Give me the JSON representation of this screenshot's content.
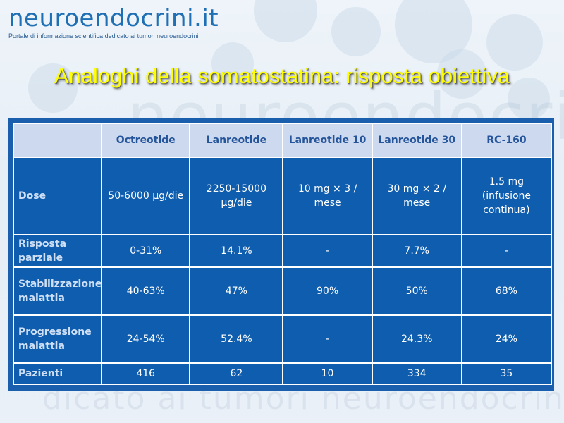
{
  "logo": {
    "title": "neuroendocrini.it",
    "tagline": "Portale di informazione scientifica dedicato ai tumori neuroendocrini"
  },
  "watermark": {
    "top": "neuroendocrini",
    "bottom": "dicato ai tumori neuroendocrini"
  },
  "slide": {
    "title": "Analoghi della somatostatina: risposta obiettiva"
  },
  "table": {
    "columns": [
      "",
      "Octreotide",
      "Lanreotide",
      "Lanreotide 10",
      "Lanreotide 30",
      "RC-160"
    ],
    "rows": [
      {
        "label": "Dose",
        "cells": [
          "50-6000 µg/die",
          "2250-15000 µg/die",
          "10 mg × 3 / mese",
          "30 mg × 2 / mese",
          "1.5 mg (infusione continua)"
        ]
      },
      {
        "label": "Risposta parziale",
        "cells": [
          "0-31%",
          "14.1%",
          "-",
          "7.7%",
          "-"
        ]
      },
      {
        "label": "Stabilizzazione malattia",
        "cells": [
          "40-63%",
          "47%",
          "90%",
          "50%",
          "68%"
        ]
      },
      {
        "label": "Progressione malattia",
        "cells": [
          "24-54%",
          "52.4%",
          "-",
          "24.3%",
          "24%"
        ]
      },
      {
        "label": "Pazienti",
        "cells": [
          "416",
          "62",
          "10",
          "334",
          "35"
        ]
      }
    ]
  },
  "colors": {
    "title_text": "#ffff00",
    "table_body": "#0f5dae",
    "table_header": "#cdd9ee",
    "logo_blue": "#1f6fb4"
  }
}
